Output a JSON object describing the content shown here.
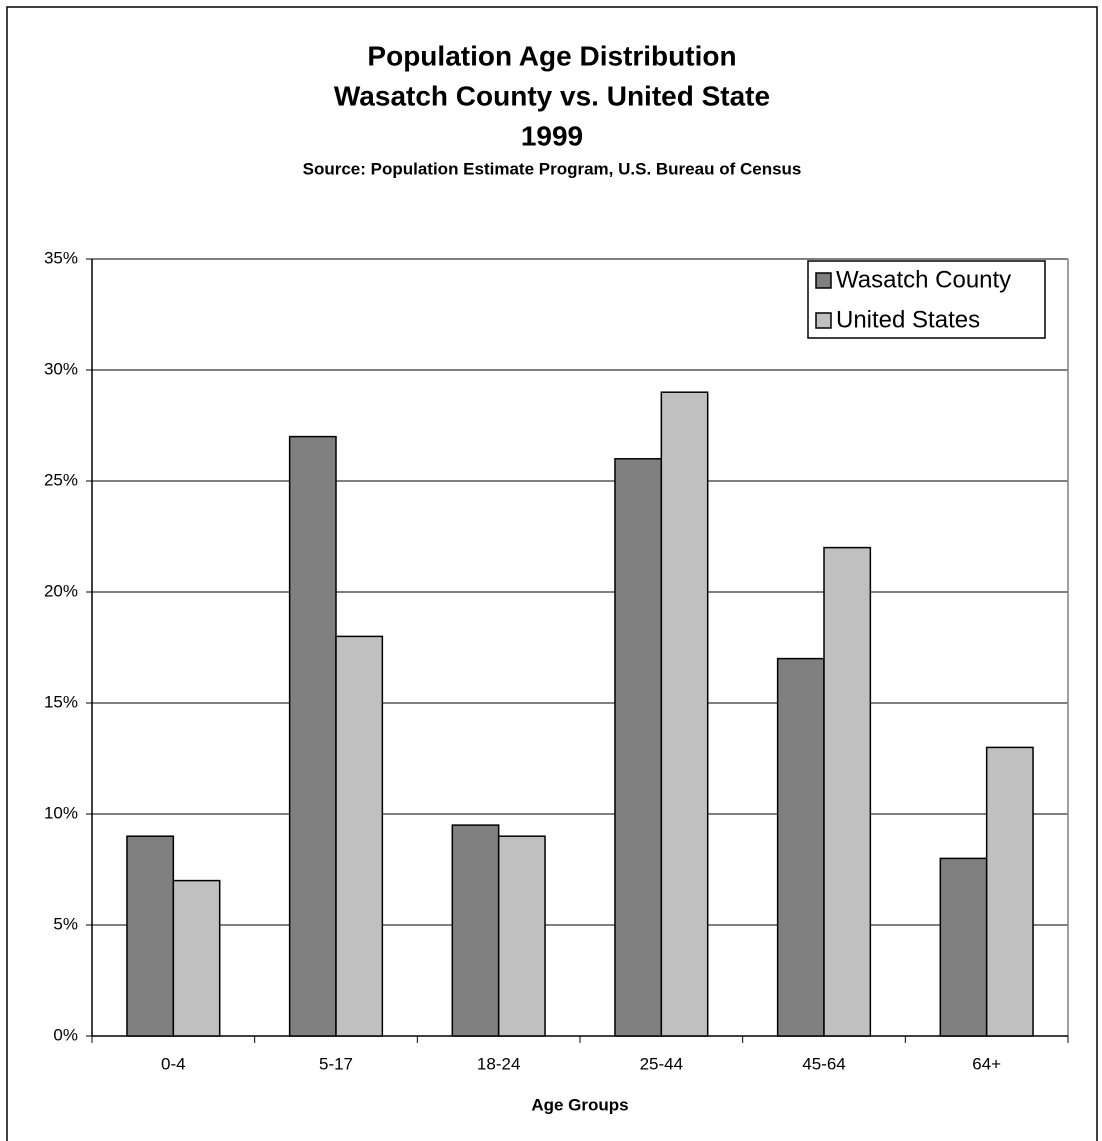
{
  "chart_data": {
    "type": "bar",
    "title_lines": [
      "Population Age Distribution",
      "Wasatch County vs. United State",
      "1999"
    ],
    "subtitle": "Source: Population Estimate Program, U.S. Bureau of Census",
    "x_label": "Age Groups",
    "categories": [
      "0-4",
      "5-17",
      "18-24",
      "25-44",
      "45-64",
      "64+"
    ],
    "series": [
      {
        "name": "Wasatch County",
        "color": "#808080",
        "values": [
          9,
          27,
          9.5,
          26,
          17,
          8
        ]
      },
      {
        "name": "United States",
        "color": "#c0c0c0",
        "values": [
          7,
          18,
          9,
          29,
          22,
          13
        ]
      }
    ],
    "ylim": [
      0,
      35
    ],
    "yticks": [
      {
        "value": 0,
        "label": "0%"
      },
      {
        "value": 5,
        "label": "5%"
      },
      {
        "value": 10,
        "label": "10%"
      },
      {
        "value": 15,
        "label": "15%"
      },
      {
        "value": 20,
        "label": "20%"
      },
      {
        "value": 25,
        "label": "25%"
      },
      {
        "value": 30,
        "label": "30%"
      },
      {
        "value": 35,
        "label": "35%"
      }
    ],
    "grid": true,
    "legend": "top-right"
  }
}
